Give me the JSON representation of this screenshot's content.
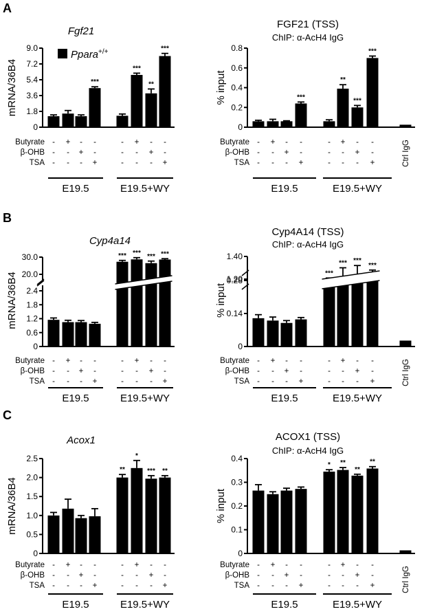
{
  "panels": [
    "A",
    "B",
    "C"
  ],
  "condition_rows": {
    "labels": [
      "Butyrate",
      "β-OHB",
      "TSA"
    ],
    "matrix": [
      [
        "-",
        "+",
        "-",
        "-"
      ],
      [
        "-",
        "-",
        "+",
        "-"
      ],
      [
        "-",
        "-",
        "-",
        "+"
      ]
    ]
  },
  "group_labels": [
    "E19.5",
    "E19.5+WY"
  ],
  "ctrl_label": "Ctrl IgG",
  "legend": {
    "label": "Ppara",
    "superscript": "+/+"
  },
  "chart_data": [
    {
      "id": "fgf21-mrna",
      "panel": "A",
      "type": "bar",
      "title": "Fgf21",
      "title_italic": true,
      "subtitle": "",
      "ylabel": "mRNA/36B4",
      "yticks": [
        "0",
        "1.8",
        "3.6",
        "5.4",
        "7.2",
        "9.0"
      ],
      "ylim": [
        0,
        9.0
      ],
      "values": [
        1.25,
        1.55,
        1.25,
        4.45,
        1.3,
        5.95,
        3.85,
        8.1
      ],
      "errors": [
        0.15,
        0.35,
        0.15,
        0.15,
        0.2,
        0.2,
        0.5,
        0.3
      ],
      "significance": [
        "",
        "",
        "",
        "***",
        "",
        "***",
        "**",
        "***"
      ]
    },
    {
      "id": "fgf21-chip",
      "panel": "A",
      "type": "bar",
      "title": "FGF21 (TSS)",
      "title_italic": false,
      "subtitle": "ChIP: α-AcH4 IgG",
      "ylabel": "% input",
      "yticks": [
        "0",
        "0.2",
        "0.4",
        "0.6",
        "0.8"
      ],
      "ylim": [
        0,
        0.8
      ],
      "values": [
        0.06,
        0.06,
        0.06,
        0.24,
        0.06,
        0.39,
        0.2,
        0.7
      ],
      "errors": [
        0.01,
        0.02,
        0.005,
        0.015,
        0.015,
        0.04,
        0.02,
        0.02
      ],
      "ctrl_value": 0.025,
      "significance": [
        "",
        "",
        "",
        "***",
        "",
        "**",
        "***",
        "***"
      ]
    },
    {
      "id": "cyp4a14-mrna",
      "panel": "B",
      "type": "bar",
      "title": "Cyp4a14",
      "title_italic": true,
      "subtitle": "",
      "ylabel": "mRNA/36B4",
      "yticks": [
        "0",
        "0.6",
        "1.2",
        "1.8",
        "2.4",
        "20.0",
        "30.0"
      ],
      "ylim": [
        0,
        30.0
      ],
      "axis_break": true,
      "values": [
        1.15,
        1.05,
        1.05,
        0.98,
        27.3,
        28.7,
        26.5,
        28.6
      ],
      "errors": [
        0.08,
        0.08,
        0.07,
        0.06,
        0.8,
        1.0,
        1.2,
        0.5
      ],
      "significance": [
        "",
        "",
        "",
        "",
        "***",
        "***",
        "***",
        "***"
      ]
    },
    {
      "id": "cyp4a14-chip",
      "panel": "B",
      "type": "bar",
      "title": "Cyp4A14 (TSS)",
      "title_italic": false,
      "subtitle": "ChIP: α-AcH4 IgG",
      "ylabel": "% input",
      "yticks": [
        "0",
        "0.14",
        "0.28",
        "1.20",
        "1.40"
      ],
      "ylim": [
        0,
        1.4
      ],
      "axis_break": true,
      "values": [
        0.12,
        0.11,
        0.1,
        0.115,
        1.18,
        1.2,
        1.22,
        1.2
      ],
      "errors": [
        0.015,
        0.015,
        0.01,
        0.008,
        0.03,
        0.1,
        0.1,
        0.08
      ],
      "ctrl_value": 0.025,
      "significance": [
        "",
        "",
        "",
        "",
        "***",
        "***",
        "***",
        "***"
      ]
    },
    {
      "id": "acox1-mrna",
      "panel": "C",
      "type": "bar",
      "title": "Acox1",
      "title_italic": true,
      "subtitle": "",
      "ylabel": "mRNA/36B4",
      "yticks": [
        "0",
        "0.5",
        "1.0",
        "1.5",
        "2.0",
        "2.5"
      ],
      "ylim": [
        0,
        2.5
      ],
      "values": [
        1.0,
        1.18,
        0.93,
        0.98,
        2.0,
        2.25,
        1.97,
        2.0
      ],
      "errors": [
        0.08,
        0.25,
        0.07,
        0.2,
        0.08,
        0.2,
        0.08,
        0.05
      ],
      "significance": [
        "",
        "",
        "",
        "",
        "**",
        "*",
        "***",
        "**"
      ]
    },
    {
      "id": "acox1-chip",
      "panel": "C",
      "type": "bar",
      "title": "ACOX1 (TSS)",
      "title_italic": false,
      "subtitle": "ChIP: α-AcH4 IgG",
      "ylabel": "% input",
      "yticks": [
        "0",
        "0.1",
        "0.2",
        "0.3",
        "0.4"
      ],
      "ylim": [
        0,
        0.4
      ],
      "values": [
        0.265,
        0.25,
        0.265,
        0.272,
        0.345,
        0.352,
        0.328,
        0.358
      ],
      "errors": [
        0.025,
        0.01,
        0.01,
        0.008,
        0.008,
        0.01,
        0.006,
        0.008
      ],
      "ctrl_value": 0.013,
      "significance": [
        "",
        "",
        "",
        "",
        "*",
        "**",
        "**",
        "**"
      ]
    }
  ]
}
